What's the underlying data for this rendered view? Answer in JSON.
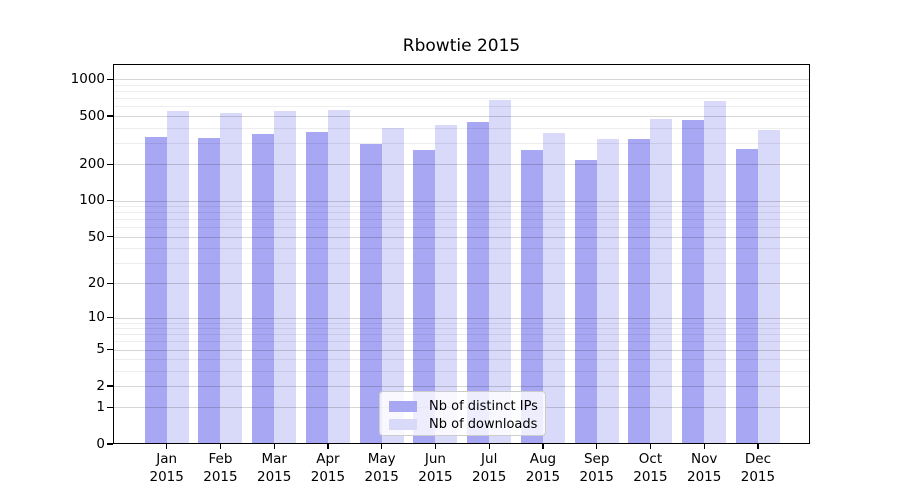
{
  "figure": {
    "title": "Rbowtie 2015",
    "background": "#ffffff"
  },
  "chart_data": {
    "type": "bar",
    "title": "Rbowtie 2015",
    "categories": [
      "Jan",
      "Feb",
      "Mar",
      "Apr",
      "May",
      "Jun",
      "Jul",
      "Aug",
      "Sep",
      "Oct",
      "Nov",
      "Dec"
    ],
    "category_year": "2015",
    "series": [
      {
        "name": "Nb of distinct IPs",
        "color": "#a7a7f3",
        "values": [
          335,
          331,
          357,
          372,
          295,
          264,
          450,
          263,
          217,
          324,
          462,
          268
        ]
      },
      {
        "name": "Nb of downloads",
        "color": "#d9d9f9",
        "values": [
          555,
          530,
          545,
          560,
          400,
          418,
          675,
          362,
          322,
          473,
          665,
          385
        ]
      }
    ],
    "xlabel": "",
    "ylabel": "",
    "yscale": "log1p",
    "ylim": [
      0,
      1340
    ],
    "yticks": [
      0,
      1,
      2,
      5,
      10,
      20,
      50,
      100,
      200,
      500,
      1000
    ],
    "yticks_minor": [
      3,
      4,
      6,
      7,
      8,
      9,
      30,
      40,
      60,
      70,
      80,
      90,
      300,
      400,
      600,
      700,
      800,
      900
    ],
    "grid": true,
    "legend_position": "lower-center"
  },
  "legend": {
    "items": [
      {
        "label": "Nb of distinct IPs",
        "color": "#a7a7f3"
      },
      {
        "label": "Nb of downloads",
        "color": "#d9d9f9"
      }
    ]
  }
}
